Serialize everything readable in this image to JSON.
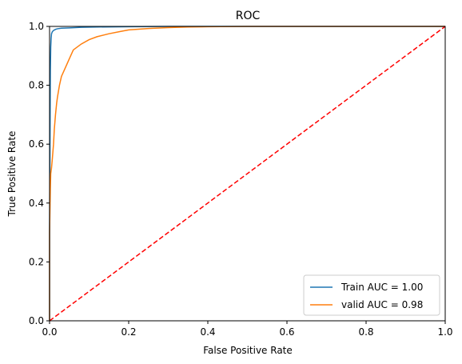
{
  "chart_data": {
    "type": "line",
    "title": "ROC",
    "xlabel": "False Positive Rate",
    "ylabel": "True Positive Rate",
    "xlim": [
      0.0,
      1.0
    ],
    "ylim": [
      0.0,
      1.0
    ],
    "xticks": [
      "0.0",
      "0.2",
      "0.4",
      "0.6",
      "0.8",
      "1.0"
    ],
    "yticks": [
      "0.0",
      "0.2",
      "0.4",
      "0.6",
      "0.8",
      "1.0"
    ],
    "grid": false,
    "legend_position": "lower-right",
    "series": [
      {
        "name": "Train AUC = 1.00",
        "color": "#1f77b4",
        "x": [
          0.0,
          0.0,
          0.002,
          0.003,
          0.004,
          0.005,
          0.007,
          0.01,
          0.015,
          0.02,
          0.03,
          0.05,
          0.08,
          0.12,
          0.2,
          0.3,
          0.4,
          0.6,
          0.8,
          1.0
        ],
        "y": [
          0.0,
          0.3,
          0.85,
          0.93,
          0.96,
          0.975,
          0.982,
          0.986,
          0.99,
          0.992,
          0.994,
          0.995,
          0.997,
          0.998,
          0.999,
          1.0,
          1.0,
          1.0,
          1.0,
          1.0
        ]
      },
      {
        "name": "valid AUC = 0.98",
        "color": "#ff7f0e",
        "x": [
          0.0,
          0.0,
          0.002,
          0.003,
          0.005,
          0.007,
          0.01,
          0.012,
          0.015,
          0.018,
          0.02,
          0.025,
          0.03,
          0.04,
          0.05,
          0.06,
          0.08,
          0.1,
          0.12,
          0.15,
          0.18,
          0.2,
          0.25,
          0.3,
          0.35,
          0.4,
          0.5,
          0.6,
          0.8,
          1.0
        ],
        "y": [
          0.0,
          0.3,
          0.45,
          0.5,
          0.52,
          0.55,
          0.6,
          0.65,
          0.7,
          0.74,
          0.76,
          0.8,
          0.83,
          0.86,
          0.89,
          0.92,
          0.94,
          0.955,
          0.965,
          0.975,
          0.983,
          0.988,
          0.993,
          0.996,
          0.998,
          0.999,
          1.0,
          1.0,
          1.0,
          1.0
        ]
      },
      {
        "name": "",
        "color": "#ff0000",
        "dashed": true,
        "x": [
          0.0,
          1.0
        ],
        "y": [
          0.0,
          1.0
        ]
      }
    ]
  }
}
